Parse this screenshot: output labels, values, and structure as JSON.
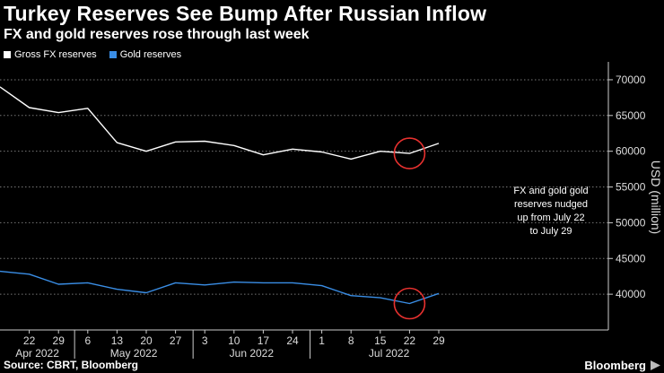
{
  "chart_data": {
    "type": "line",
    "title": "Turkey Reserves See Bump After Russian Inflow",
    "subtitle": "FX and gold reserves rose through last week",
    "ylabel": "USD (million)",
    "ylim": [
      35000,
      72000
    ],
    "yticks": [
      40000,
      45000,
      50000,
      55000,
      60000,
      65000,
      70000
    ],
    "ytick_labels": [
      "40000",
      "45000",
      "50000",
      "55000",
      "60000",
      "65000",
      "70000"
    ],
    "x": [
      "2022-04-15",
      "2022-04-22",
      "2022-04-29",
      "2022-05-06",
      "2022-05-13",
      "2022-05-20",
      "2022-05-27",
      "2022-06-03",
      "2022-06-10",
      "2022-06-17",
      "2022-06-24",
      "2022-07-01",
      "2022-07-08",
      "2022-07-15",
      "2022-07-22",
      "2022-07-29"
    ],
    "xtick_labels": [
      "22",
      "29",
      "6",
      "13",
      "20",
      "27",
      "3",
      "10",
      "17",
      "24",
      "1",
      "8",
      "15",
      "22",
      "29"
    ],
    "month_labels": [
      {
        "label": "Apr 2022"
      },
      {
        "label": "May 2022"
      },
      {
        "label": "Jun 2022"
      },
      {
        "label": "Jul 2022"
      }
    ],
    "series": [
      {
        "name": "Gross FX reserves",
        "color": "#ffffff",
        "values": [
          69000,
          66100,
          65400,
          66000,
          61200,
          60000,
          61300,
          61400,
          60800,
          59500,
          60300,
          59900,
          58900,
          60000,
          59700,
          61100
        ]
      },
      {
        "name": "Gold reserves",
        "color": "#3a8ee6",
        "values": [
          43200,
          42800,
          41400,
          41600,
          40700,
          40200,
          41600,
          41300,
          41700,
          41600,
          41600,
          41200,
          39800,
          39500,
          38700,
          40100
        ]
      }
    ],
    "annotation": {
      "text_lines": [
        "FX and gold gold",
        "reserves nudged",
        "up from July 22",
        "to July 29"
      ],
      "highlight_x_index": 14,
      "circle_color": "#e8312f"
    },
    "grid": true,
    "legend_position": "top-left"
  },
  "footer": {
    "source": "Source: CBRT, Bloomberg",
    "brand": "Bloomberg"
  }
}
